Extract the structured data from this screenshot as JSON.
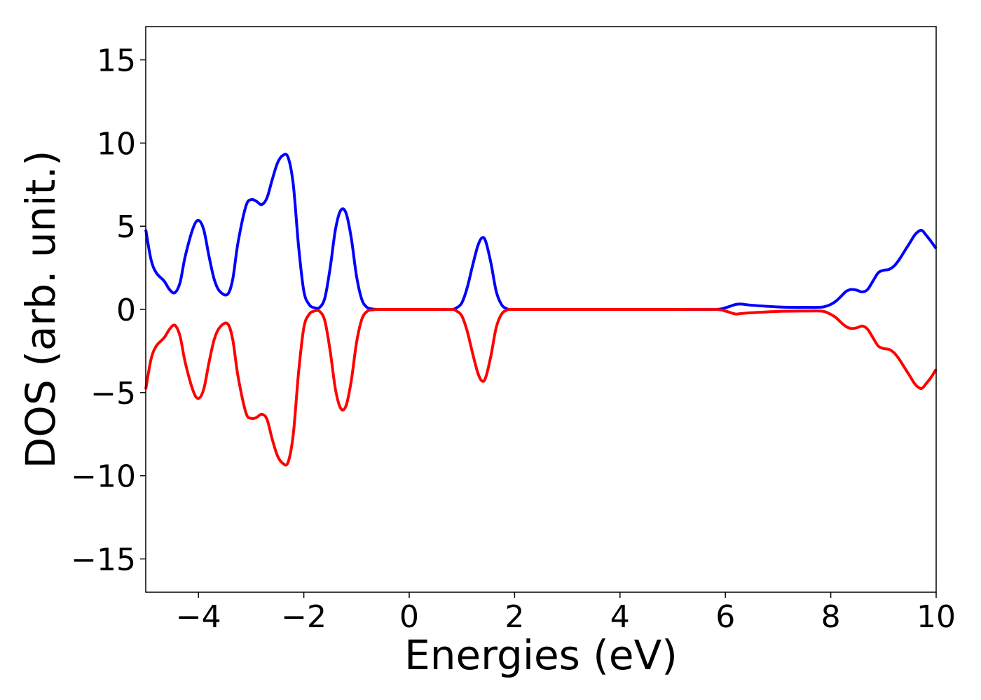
{
  "chart_data": {
    "type": "line",
    "title": "",
    "xlabel": "Energies (eV)",
    "ylabel": "DOS (arb. unit.)",
    "xlim": [
      -5,
      10
    ],
    "ylim": [
      -17,
      17
    ],
    "xticks": [
      -4,
      -2,
      0,
      2,
      4,
      6,
      8,
      10
    ],
    "yticks": [
      -15,
      -10,
      -5,
      0,
      5,
      10,
      15
    ],
    "xtick_labels": [
      "−4",
      "−2",
      "0",
      "2",
      "4",
      "6",
      "8",
      "10"
    ],
    "ytick_labels": [
      "−15",
      "−10",
      "−5",
      "0",
      "5",
      "10",
      "15"
    ],
    "grid": false,
    "legend": "none",
    "series": [
      {
        "color": "#0000ff",
        "x": [
          -5.0,
          -4.9,
          -4.8,
          -4.65,
          -4.55,
          -4.45,
          -4.35,
          -4.25,
          -4.1,
          -4.0,
          -3.9,
          -3.8,
          -3.7,
          -3.6,
          -3.45,
          -3.35,
          -3.25,
          -3.1,
          -3.0,
          -2.9,
          -2.8,
          -2.7,
          -2.6,
          -2.5,
          -2.4,
          -2.3,
          -2.2,
          -2.1,
          -2.0,
          -1.9,
          -1.8,
          -1.7,
          -1.6,
          -1.5,
          -1.4,
          -1.3,
          -1.2,
          -1.1,
          -1.0,
          -0.9,
          -0.8,
          -0.7,
          -0.6,
          -0.5,
          -0.3,
          0.0,
          0.5,
          0.8,
          0.9,
          1.0,
          1.1,
          1.2,
          1.3,
          1.38,
          1.45,
          1.55,
          1.65,
          1.75,
          1.85,
          2.0,
          3.0,
          4.0,
          5.0,
          5.8,
          6.0,
          6.1,
          6.2,
          6.3,
          6.5,
          7.0,
          7.5,
          7.8,
          7.9,
          8.0,
          8.1,
          8.2,
          8.3,
          8.4,
          8.5,
          8.6,
          8.7,
          8.8,
          8.9,
          9.0,
          9.1,
          9.2,
          9.3,
          9.4,
          9.5,
          9.6,
          9.7,
          9.75,
          9.8,
          9.9,
          10.0
        ],
        "values": [
          4.8,
          3.0,
          2.2,
          1.7,
          1.2,
          1.0,
          1.6,
          3.2,
          4.9,
          5.35,
          4.8,
          3.2,
          1.8,
          1.1,
          0.9,
          1.8,
          4.0,
          6.2,
          6.6,
          6.5,
          6.3,
          6.7,
          7.8,
          8.8,
          9.25,
          9.15,
          7.5,
          3.8,
          1.1,
          0.3,
          0.1,
          0.12,
          0.7,
          2.5,
          4.8,
          5.95,
          5.8,
          4.3,
          2.0,
          0.6,
          0.12,
          0.03,
          0.0,
          0.0,
          0.0,
          0.0,
          0.0,
          0.0,
          0.1,
          0.4,
          1.3,
          2.6,
          3.8,
          4.3,
          4.1,
          2.8,
          1.1,
          0.3,
          0.05,
          0.0,
          0.0,
          0.0,
          0.0,
          0.0,
          0.1,
          0.2,
          0.3,
          0.32,
          0.25,
          0.15,
          0.12,
          0.13,
          0.18,
          0.3,
          0.5,
          0.8,
          1.1,
          1.2,
          1.15,
          1.05,
          1.2,
          1.7,
          2.2,
          2.35,
          2.4,
          2.6,
          3.0,
          3.5,
          4.0,
          4.5,
          4.75,
          4.7,
          4.5,
          4.1,
          3.65
        ]
      },
      {
        "color": "#ff0000",
        "x": [
          -5.0,
          -4.9,
          -4.8,
          -4.65,
          -4.55,
          -4.45,
          -4.35,
          -4.25,
          -4.1,
          -4.0,
          -3.9,
          -3.8,
          -3.7,
          -3.6,
          -3.45,
          -3.35,
          -3.25,
          -3.1,
          -3.0,
          -2.9,
          -2.8,
          -2.7,
          -2.6,
          -2.5,
          -2.4,
          -2.3,
          -2.2,
          -2.1,
          -2.0,
          -1.9,
          -1.8,
          -1.7,
          -1.6,
          -1.5,
          -1.4,
          -1.3,
          -1.2,
          -1.1,
          -1.0,
          -0.9,
          -0.8,
          -0.7,
          -0.6,
          -0.5,
          -0.3,
          0.0,
          0.5,
          0.8,
          0.9,
          1.0,
          1.1,
          1.2,
          1.3,
          1.38,
          1.45,
          1.55,
          1.65,
          1.75,
          1.85,
          2.0,
          3.0,
          4.0,
          5.0,
          5.8,
          6.0,
          6.1,
          6.2,
          6.3,
          6.5,
          7.0,
          7.5,
          7.8,
          7.9,
          8.0,
          8.1,
          8.2,
          8.3,
          8.4,
          8.5,
          8.6,
          8.7,
          8.8,
          8.9,
          9.0,
          9.1,
          9.2,
          9.3,
          9.4,
          9.5,
          9.6,
          9.7,
          9.75,
          9.8,
          9.9,
          10.0
        ],
        "values": [
          -4.8,
          -3.0,
          -2.2,
          -1.7,
          -1.2,
          -0.95,
          -1.6,
          -3.2,
          -4.9,
          -5.35,
          -4.8,
          -3.2,
          -1.8,
          -1.1,
          -0.85,
          -1.8,
          -4.0,
          -6.2,
          -6.55,
          -6.5,
          -6.3,
          -6.6,
          -7.8,
          -8.8,
          -9.25,
          -9.2,
          -7.5,
          -3.8,
          -1.1,
          -0.3,
          -0.1,
          -0.12,
          -0.7,
          -2.5,
          -4.8,
          -5.95,
          -5.8,
          -4.3,
          -2.0,
          -0.6,
          -0.12,
          -0.03,
          0.0,
          0.0,
          0.0,
          0.0,
          0.0,
          0.0,
          -0.1,
          -0.4,
          -1.3,
          -2.6,
          -3.8,
          -4.3,
          -4.1,
          -2.8,
          -1.1,
          -0.3,
          -0.05,
          0.0,
          0.0,
          0.0,
          0.0,
          0.0,
          -0.1,
          -0.2,
          -0.28,
          -0.25,
          -0.2,
          -0.12,
          -0.1,
          -0.1,
          -0.15,
          -0.3,
          -0.5,
          -0.8,
          -1.05,
          -1.15,
          -1.1,
          -1.0,
          -1.2,
          -1.7,
          -2.2,
          -2.35,
          -2.4,
          -2.6,
          -3.0,
          -3.5,
          -4.0,
          -4.5,
          -4.75,
          -4.7,
          -4.5,
          -4.1,
          -3.6
        ]
      }
    ]
  }
}
